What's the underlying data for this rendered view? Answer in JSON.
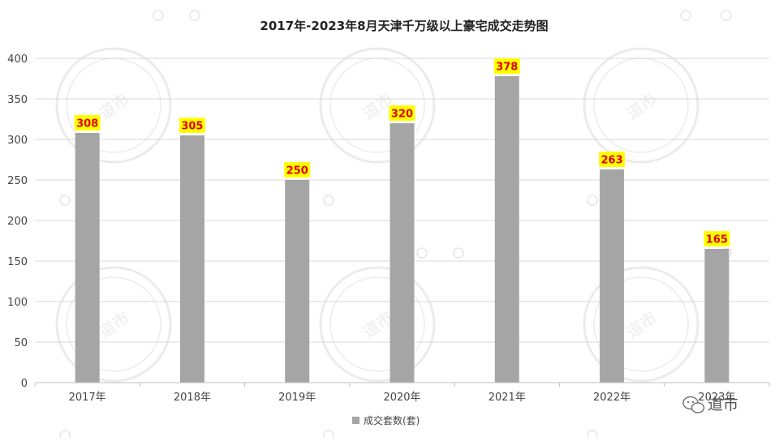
{
  "chart_data": {
    "type": "bar",
    "title": "2017年-2023年8月天津千万级以上豪宅成交走势图",
    "categories": [
      "2017年",
      "2018年",
      "2019年",
      "2020年",
      "2021年",
      "2022年",
      "2023年"
    ],
    "series": [
      {
        "name": "成交套数(套)",
        "values": [
          308,
          305,
          250,
          320,
          378,
          263,
          165
        ]
      }
    ],
    "ylim": [
      0,
      400
    ],
    "yticks": [
      0,
      50,
      100,
      150,
      200,
      250,
      300,
      350,
      400
    ],
    "grid": true,
    "legend": "bottom",
    "data_labels": true,
    "colors": {
      "bar": "#a5a5a5",
      "label_bg": "#ffff00",
      "label_text": "#e00000",
      "grid": "#d9d9d9"
    }
  },
  "watermark": {
    "brand": "道市"
  }
}
